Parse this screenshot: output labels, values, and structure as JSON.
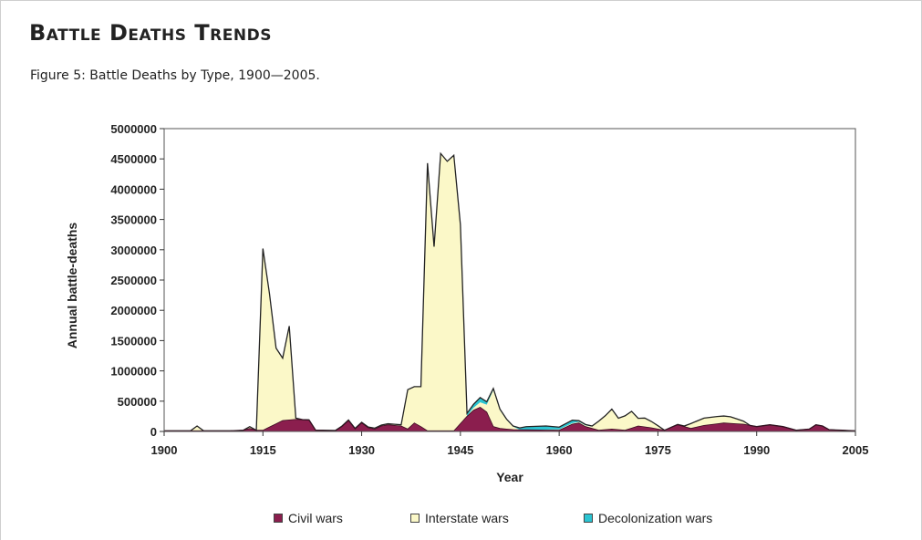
{
  "page": {
    "heading": "Battle Deaths Trends",
    "caption": "Figure 5: Battle Deaths by Type, 1900—2005."
  },
  "colors": {
    "civil": "#8b1e4e",
    "interstate": "#fbf8c8",
    "decolonization": "#2bc4d2",
    "outline": "#222222"
  },
  "chart_data": {
    "type": "area",
    "title": "",
    "xlabel": "Year",
    "ylabel": "Annual battle-deaths",
    "xlim": [
      1900,
      2005
    ],
    "ylim": [
      0,
      5000000
    ],
    "x_ticks": [
      1900,
      1915,
      1930,
      1945,
      1960,
      1975,
      1990,
      2005
    ],
    "y_ticks": [
      0,
      500000,
      1000000,
      1500000,
      2000000,
      2500000,
      3000000,
      3500000,
      4000000,
      4500000,
      5000000
    ],
    "grid": false,
    "legend_position": "bottom",
    "stacked": true,
    "series": [
      {
        "name": "Civil wars",
        "points": [
          [
            1900,
            10000
          ],
          [
            1905,
            10000
          ],
          [
            1910,
            10000
          ],
          [
            1912,
            20000
          ],
          [
            1913,
            50000
          ],
          [
            1914,
            20000
          ],
          [
            1915,
            20000
          ],
          [
            1918,
            180000
          ],
          [
            1920,
            200000
          ],
          [
            1922,
            190000
          ],
          [
            1923,
            20000
          ],
          [
            1926,
            10000
          ],
          [
            1927,
            80000
          ],
          [
            1928,
            180000
          ],
          [
            1929,
            40000
          ],
          [
            1930,
            140000
          ],
          [
            1931,
            60000
          ],
          [
            1932,
            40000
          ],
          [
            1933,
            90000
          ],
          [
            1934,
            110000
          ],
          [
            1936,
            90000
          ],
          [
            1937,
            40000
          ],
          [
            1938,
            140000
          ],
          [
            1939,
            80000
          ],
          [
            1940,
            10000
          ],
          [
            1944,
            10000
          ],
          [
            1946,
            250000
          ],
          [
            1947,
            350000
          ],
          [
            1948,
            400000
          ],
          [
            1949,
            320000
          ],
          [
            1950,
            80000
          ],
          [
            1951,
            50000
          ],
          [
            1953,
            30000
          ],
          [
            1960,
            20000
          ],
          [
            1962,
            120000
          ],
          [
            1963,
            140000
          ],
          [
            1964,
            80000
          ],
          [
            1966,
            20000
          ],
          [
            1968,
            40000
          ],
          [
            1970,
            20000
          ],
          [
            1972,
            90000
          ],
          [
            1974,
            60000
          ],
          [
            1976,
            20000
          ],
          [
            1978,
            110000
          ],
          [
            1980,
            50000
          ],
          [
            1982,
            100000
          ],
          [
            1985,
            140000
          ],
          [
            1988,
            120000
          ],
          [
            1990,
            80000
          ],
          [
            1992,
            110000
          ],
          [
            1994,
            80000
          ],
          [
            1996,
            20000
          ],
          [
            1998,
            40000
          ],
          [
            1999,
            110000
          ],
          [
            2000,
            90000
          ],
          [
            2001,
            30000
          ],
          [
            2005,
            10000
          ]
        ]
      },
      {
        "name": "Interstate wars",
        "points": [
          [
            1900,
            0
          ],
          [
            1904,
            0
          ],
          [
            1905,
            80000
          ],
          [
            1906,
            0
          ],
          [
            1912,
            0
          ],
          [
            1913,
            30000
          ],
          [
            1914,
            0
          ],
          [
            1915,
            3000000
          ],
          [
            1916,
            2200000
          ],
          [
            1917,
            1250000
          ],
          [
            1918,
            1030000
          ],
          [
            1919,
            1550000
          ],
          [
            1920,
            20000
          ],
          [
            1921,
            0
          ],
          [
            1936,
            20000
          ],
          [
            1937,
            650000
          ],
          [
            1938,
            600000
          ],
          [
            1939,
            660000
          ],
          [
            1940,
            4420000
          ],
          [
            1941,
            3040000
          ],
          [
            1942,
            4580000
          ],
          [
            1943,
            4450000
          ],
          [
            1944,
            4550000
          ],
          [
            1945,
            3280000
          ],
          [
            1946,
            0
          ],
          [
            1949,
            120000
          ],
          [
            1950,
            600000
          ],
          [
            1951,
            300000
          ],
          [
            1952,
            150000
          ],
          [
            1953,
            50000
          ],
          [
            1954,
            0
          ],
          [
            1964,
            20000
          ],
          [
            1965,
            30000
          ],
          [
            1966,
            140000
          ],
          [
            1967,
            220000
          ],
          [
            1968,
            320000
          ],
          [
            1969,
            180000
          ],
          [
            1970,
            230000
          ],
          [
            1971,
            270000
          ],
          [
            1972,
            120000
          ],
          [
            1973,
            140000
          ],
          [
            1974,
            100000
          ],
          [
            1976,
            0
          ],
          [
            1979,
            10000
          ],
          [
            1980,
            80000
          ],
          [
            1982,
            120000
          ],
          [
            1984,
            120000
          ],
          [
            1986,
            110000
          ],
          [
            1988,
            50000
          ],
          [
            1989,
            0
          ],
          [
            2005,
            0
          ]
        ]
      },
      {
        "name": "Decolonization wars",
        "points": [
          [
            1900,
            0
          ],
          [
            1945,
            0
          ],
          [
            1946,
            50000
          ],
          [
            1947,
            60000
          ],
          [
            1948,
            80000
          ],
          [
            1949,
            50000
          ],
          [
            1950,
            30000
          ],
          [
            1951,
            20000
          ],
          [
            1953,
            10000
          ],
          [
            1955,
            50000
          ],
          [
            1958,
            60000
          ],
          [
            1960,
            40000
          ],
          [
            1962,
            50000
          ],
          [
            1963,
            20000
          ],
          [
            1965,
            10000
          ],
          [
            1975,
            5000
          ],
          [
            1976,
            0
          ],
          [
            2005,
            0
          ]
        ]
      }
    ]
  }
}
